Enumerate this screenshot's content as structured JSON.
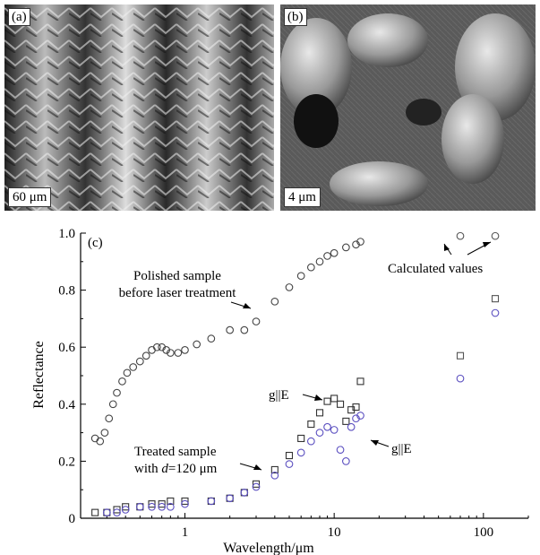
{
  "panels": [
    {
      "label": "(a)",
      "scale_bar": "60 μm"
    },
    {
      "label": "(b)",
      "scale_bar": "4 μm"
    }
  ],
  "chart_data": {
    "type": "scatter",
    "panel_label": "(c)",
    "xlabel": "Wavelength/μm",
    "ylabel": "Reflectance",
    "xscale": "log",
    "xlim": [
      0.2,
      200
    ],
    "ylim": [
      0,
      1.0
    ],
    "x_tick_labels": [
      "1",
      "10",
      "100"
    ],
    "y_tick_labels": [
      "0",
      "0.2",
      "0.4",
      "0.6",
      "0.8",
      "1.0"
    ],
    "grid": false,
    "annotations": {
      "polished": [
        "Polished sample",
        "before laser treatment"
      ],
      "treated_prefix": "Treated sample",
      "treated_with": "with ",
      "treated_d": "d",
      "treated_rest": "=120 μm",
      "g_par_top": "g||E",
      "g_par_bottom": "g||E",
      "calculated": "Calculated values"
    },
    "series": [
      {
        "marker": "circle",
        "color": "#444444",
        "x": [
          0.25,
          0.27,
          0.29,
          0.31,
          0.33,
          0.35,
          0.38,
          0.41,
          0.45,
          0.5,
          0.55,
          0.6,
          0.65,
          0.7,
          0.75,
          0.8,
          0.9,
          1.0,
          1.2,
          1.5,
          2,
          2.5,
          3,
          4,
          5,
          6,
          7,
          8,
          9,
          10,
          12,
          14,
          15
        ],
        "y": [
          0.28,
          0.27,
          0.3,
          0.35,
          0.4,
          0.44,
          0.48,
          0.51,
          0.53,
          0.55,
          0.57,
          0.59,
          0.6,
          0.6,
          0.59,
          0.58,
          0.58,
          0.59,
          0.61,
          0.63,
          0.66,
          0.66,
          0.69,
          0.76,
          0.81,
          0.85,
          0.88,
          0.9,
          0.92,
          0.93,
          0.95,
          0.96,
          0.97
        ]
      },
      {
        "marker": "square",
        "color": "#333333",
        "x": [
          0.25,
          0.3,
          0.35,
          0.4,
          0.5,
          0.6,
          0.7,
          0.8,
          1,
          1.5,
          2,
          2.5,
          3,
          4,
          5,
          6,
          7,
          8,
          9,
          10,
          11,
          12,
          13,
          14,
          15
        ],
        "y": [
          0.02,
          0.02,
          0.03,
          0.04,
          0.04,
          0.05,
          0.05,
          0.06,
          0.06,
          0.06,
          0.07,
          0.09,
          0.12,
          0.17,
          0.22,
          0.28,
          0.33,
          0.37,
          0.41,
          0.42,
          0.4,
          0.34,
          0.38,
          0.39,
          0.48
        ]
      },
      {
        "marker": "circle",
        "color": "#5b4fc0",
        "x": [
          0.3,
          0.35,
          0.4,
          0.5,
          0.6,
          0.7,
          0.8,
          1,
          1.5,
          2,
          2.5,
          3,
          4,
          5,
          6,
          7,
          8,
          9,
          10,
          11,
          12,
          13,
          14,
          15
        ],
        "y": [
          0.02,
          0.02,
          0.03,
          0.04,
          0.04,
          0.04,
          0.04,
          0.05,
          0.06,
          0.07,
          0.09,
          0.11,
          0.15,
          0.19,
          0.23,
          0.27,
          0.3,
          0.32,
          0.31,
          0.24,
          0.2,
          0.32,
          0.35,
          0.36
        ]
      },
      {
        "name": "Calculated values",
        "marker": "circle",
        "color": "#555555",
        "x": [
          70,
          120
        ],
        "y": [
          0.99,
          0.99
        ]
      },
      {
        "marker": "square",
        "color": "#555555",
        "x": [
          70,
          120
        ],
        "y": [
          0.57,
          0.77
        ]
      },
      {
        "marker": "circle",
        "color": "#5b4fc0",
        "x": [
          70,
          120
        ],
        "y": [
          0.49,
          0.72
        ]
      }
    ]
  }
}
